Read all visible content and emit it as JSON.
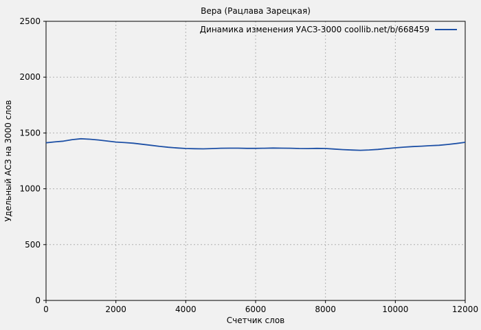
{
  "chart": {
    "title": "Вера (Рацлава Зарецкая)",
    "ylabel": "Удельный АСЗ на 3000 слов",
    "xlabel": "Счетчик слов",
    "legend": "Динамика изменения УАСЗ-3000 coollib.net/b/668459"
  },
  "chart_data": {
    "type": "line",
    "title": "Вера (Рацлава Зарецкая)",
    "xlabel": "Счетчик слов",
    "ylabel": "Удельный АСЗ на 3000 слов",
    "legend_entries": [
      "Динамика изменения УАСЗ-3000 coollib.net/b/668459"
    ],
    "legend_position": "top-right-inside",
    "grid": true,
    "xlim": [
      0,
      12000
    ],
    "ylim": [
      0,
      2500
    ],
    "xticks": [
      0,
      2000,
      4000,
      6000,
      8000,
      10000,
      12000
    ],
    "yticks": [
      0,
      500,
      1000,
      1500,
      2000,
      2500
    ],
    "colors": {
      "line": "#1c4fa5",
      "grid": "#b0b0b0",
      "axis": "#000000",
      "background": "#f1f1f1"
    },
    "series": [
      {
        "name": "Динамика изменения УАСЗ-3000 coollib.net/b/668459",
        "points": [
          [
            0,
            1412
          ],
          [
            250,
            1420
          ],
          [
            500,
            1427
          ],
          [
            750,
            1440
          ],
          [
            1000,
            1448
          ],
          [
            1250,
            1444
          ],
          [
            1500,
            1437
          ],
          [
            1750,
            1428
          ],
          [
            2000,
            1419
          ],
          [
            2250,
            1414
          ],
          [
            2500,
            1408
          ],
          [
            2750,
            1399
          ],
          [
            3000,
            1390
          ],
          [
            3250,
            1380
          ],
          [
            3500,
            1372
          ],
          [
            3750,
            1366
          ],
          [
            4000,
            1361
          ],
          [
            4250,
            1359
          ],
          [
            4500,
            1358
          ],
          [
            4750,
            1360
          ],
          [
            5000,
            1363
          ],
          [
            5250,
            1364
          ],
          [
            5500,
            1364
          ],
          [
            5750,
            1362
          ],
          [
            6000,
            1362
          ],
          [
            6250,
            1363
          ],
          [
            6500,
            1365
          ],
          [
            6750,
            1364
          ],
          [
            7000,
            1363
          ],
          [
            7250,
            1361
          ],
          [
            7500,
            1360
          ],
          [
            7750,
            1362
          ],
          [
            8000,
            1361
          ],
          [
            8250,
            1356
          ],
          [
            8500,
            1351
          ],
          [
            8750,
            1347
          ],
          [
            9000,
            1345
          ],
          [
            9250,
            1348
          ],
          [
            9500,
            1353
          ],
          [
            9750,
            1360
          ],
          [
            10000,
            1367
          ],
          [
            10250,
            1373
          ],
          [
            10500,
            1378
          ],
          [
            10750,
            1382
          ],
          [
            11000,
            1386
          ],
          [
            11250,
            1390
          ],
          [
            11500,
            1397
          ],
          [
            11750,
            1406
          ],
          [
            12000,
            1416
          ]
        ]
      }
    ]
  }
}
